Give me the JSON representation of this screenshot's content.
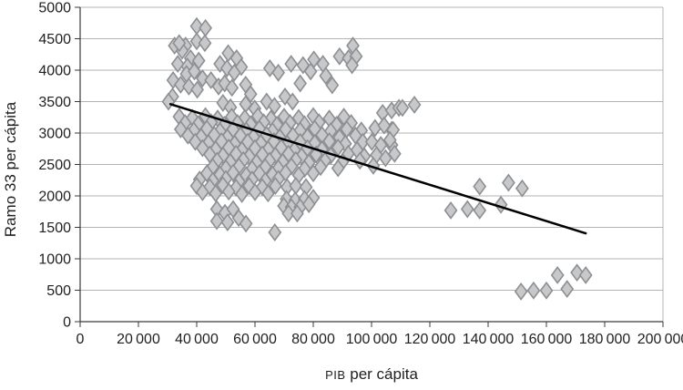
{
  "chart_data": {
    "type": "scatter",
    "title": "",
    "xlabel": "PIB per cápita",
    "xlabel_acronym": "PIB",
    "xlabel_rest": " per cápita",
    "ylabel": "Ramo 33 per cápita",
    "xlim": [
      0,
      200000
    ],
    "ylim": [
      0,
      5000
    ],
    "grid": "horizontal",
    "legend": "none",
    "x_ticks": {
      "values": [
        0,
        20000,
        40000,
        60000,
        80000,
        100000,
        120000,
        140000,
        160000,
        180000,
        200000
      ],
      "labels": [
        "0",
        "20 000",
        "40 000",
        "60 000",
        "80 000",
        "100 000",
        "120 000",
        "140 000",
        "160 000",
        "180 000",
        "200 000"
      ]
    },
    "y_ticks": {
      "values": [
        0,
        500,
        1000,
        1500,
        2000,
        2500,
        3000,
        3500,
        4000,
        4500,
        5000
      ],
      "labels": [
        "0",
        "500",
        "1000",
        "1500",
        "2000",
        "2500",
        "3000",
        "3500",
        "4000",
        "4500",
        "5000"
      ]
    },
    "marker": {
      "shape": "diamond",
      "fill": "#c7c8ca",
      "stroke": "#8d8f92"
    },
    "colors": {
      "gridline": "#b3b3b3",
      "axis": "#3a3a3a",
      "trendline": "#000000",
      "text": "#1f1f1f",
      "background": "#ffffff"
    },
    "trendline": {
      "x1": 31000,
      "y1": 3460,
      "x2": 173500,
      "y2": 1405
    },
    "points": [
      [
        40000,
        4700
      ],
      [
        43000,
        4670
      ],
      [
        36200,
        4390
      ],
      [
        40000,
        4460
      ],
      [
        42800,
        4430
      ],
      [
        35000,
        4310
      ],
      [
        37900,
        4190
      ],
      [
        40700,
        4150
      ],
      [
        32400,
        4390
      ],
      [
        34000,
        4430
      ],
      [
        33500,
        4100
      ],
      [
        36800,
        4060
      ],
      [
        36500,
        3940
      ],
      [
        39200,
        3980
      ],
      [
        42000,
        3870
      ],
      [
        44900,
        3840
      ],
      [
        31900,
        3840
      ],
      [
        34500,
        3770
      ],
      [
        37300,
        3740
      ],
      [
        40200,
        3690
      ],
      [
        31700,
        3580
      ],
      [
        30300,
        3500
      ],
      [
        50800,
        4270
      ],
      [
        53700,
        4190
      ],
      [
        55300,
        4050
      ],
      [
        48000,
        4100
      ],
      [
        50400,
        4030
      ],
      [
        52900,
        3960
      ],
      [
        65100,
        4030
      ],
      [
        68000,
        3960
      ],
      [
        72400,
        4100
      ],
      [
        47500,
        3740
      ],
      [
        49600,
        3790
      ],
      [
        52100,
        3720
      ],
      [
        56800,
        3770
      ],
      [
        58500,
        3620
      ],
      [
        59900,
        3390
      ],
      [
        64000,
        3500
      ],
      [
        66700,
        3430
      ],
      [
        70300,
        3580
      ],
      [
        72900,
        3500
      ],
      [
        56800,
        3460
      ],
      [
        49000,
        3480
      ],
      [
        51600,
        3410
      ],
      [
        76500,
        4080
      ],
      [
        80200,
        4170
      ],
      [
        83300,
        4100
      ],
      [
        79100,
        3980
      ],
      [
        84300,
        3910
      ],
      [
        75500,
        3790
      ],
      [
        89000,
        4220
      ],
      [
        92100,
        4190
      ],
      [
        93600,
        4390
      ],
      [
        94700,
        4220
      ],
      [
        93300,
        4080
      ],
      [
        86500,
        3760
      ],
      [
        103800,
        3320
      ],
      [
        106900,
        3360
      ],
      [
        109400,
        3400
      ],
      [
        110600,
        3400
      ],
      [
        114700,
        3450
      ],
      [
        106900,
        3050
      ],
      [
        106900,
        2810
      ],
      [
        34000,
        3260
      ],
      [
        38500,
        3240
      ],
      [
        43000,
        3270
      ],
      [
        47200,
        3230
      ],
      [
        52000,
        3260
      ],
      [
        56500,
        3240
      ],
      [
        61000,
        3270
      ],
      [
        65500,
        3230
      ],
      [
        70000,
        3260
      ],
      [
        75000,
        3240
      ],
      [
        80000,
        3270
      ],
      [
        85500,
        3230
      ],
      [
        90500,
        3260
      ],
      [
        36000,
        3160
      ],
      [
        40500,
        3140
      ],
      [
        45000,
        3170
      ],
      [
        49500,
        3130
      ],
      [
        54000,
        3160
      ],
      [
        58500,
        3140
      ],
      [
        63000,
        3170
      ],
      [
        67500,
        3130
      ],
      [
        72000,
        3160
      ],
      [
        77000,
        3140
      ],
      [
        82000,
        3170
      ],
      [
        88000,
        3130
      ],
      [
        93000,
        3160
      ],
      [
        34500,
        3060
      ],
      [
        39000,
        3040
      ],
      [
        43500,
        3070
      ],
      [
        48000,
        3030
      ],
      [
        52500,
        3060
      ],
      [
        57000,
        3040
      ],
      [
        61500,
        3070
      ],
      [
        66000,
        3030
      ],
      [
        70500,
        3060
      ],
      [
        75500,
        3040
      ],
      [
        80500,
        3070
      ],
      [
        86000,
        3030
      ],
      [
        91500,
        3060
      ],
      [
        96500,
        3040
      ],
      [
        37000,
        2960
      ],
      [
        41500,
        2940
      ],
      [
        46000,
        2970
      ],
      [
        50500,
        2930
      ],
      [
        55000,
        2960
      ],
      [
        59500,
        2940
      ],
      [
        64000,
        2970
      ],
      [
        68500,
        2930
      ],
      [
        73000,
        2960
      ],
      [
        78000,
        2940
      ],
      [
        83000,
        2970
      ],
      [
        89000,
        2930
      ],
      [
        94500,
        2960
      ],
      [
        39500,
        2860
      ],
      [
        44000,
        2840
      ],
      [
        48500,
        2870
      ],
      [
        53000,
        2830
      ],
      [
        57500,
        2860
      ],
      [
        62000,
        2840
      ],
      [
        66500,
        2870
      ],
      [
        71000,
        2830
      ],
      [
        75500,
        2860
      ],
      [
        80500,
        2840
      ],
      [
        85500,
        2870
      ],
      [
        91000,
        2830
      ],
      [
        97000,
        2860
      ],
      [
        42000,
        2760
      ],
      [
        46500,
        2740
      ],
      [
        51000,
        2770
      ],
      [
        55500,
        2730
      ],
      [
        60000,
        2760
      ],
      [
        64500,
        2740
      ],
      [
        69000,
        2770
      ],
      [
        73500,
        2730
      ],
      [
        78000,
        2760
      ],
      [
        83000,
        2740
      ],
      [
        88500,
        2770
      ],
      [
        95000,
        2730
      ],
      [
        44500,
        2660
      ],
      [
        49000,
        2640
      ],
      [
        53500,
        2670
      ],
      [
        58000,
        2630
      ],
      [
        62500,
        2660
      ],
      [
        67000,
        2640
      ],
      [
        71500,
        2670
      ],
      [
        76000,
        2630
      ],
      [
        81000,
        2660
      ],
      [
        86000,
        2640
      ],
      [
        92000,
        2670
      ],
      [
        97500,
        2630
      ],
      [
        47000,
        2560
      ],
      [
        51500,
        2540
      ],
      [
        56000,
        2570
      ],
      [
        60500,
        2530
      ],
      [
        65000,
        2560
      ],
      [
        69500,
        2540
      ],
      [
        74000,
        2570
      ],
      [
        78500,
        2530
      ],
      [
        84000,
        2560
      ],
      [
        90000,
        2540
      ],
      [
        96000,
        2560
      ],
      [
        45500,
        2460
      ],
      [
        50000,
        2440
      ],
      [
        54500,
        2470
      ],
      [
        59000,
        2430
      ],
      [
        63500,
        2460
      ],
      [
        68000,
        2440
      ],
      [
        72500,
        2470
      ],
      [
        77000,
        2430
      ],
      [
        82500,
        2460
      ],
      [
        88500,
        2440
      ],
      [
        43500,
        2360
      ],
      [
        48000,
        2340
      ],
      [
        52500,
        2370
      ],
      [
        57000,
        2330
      ],
      [
        61500,
        2360
      ],
      [
        66000,
        2340
      ],
      [
        70500,
        2370
      ],
      [
        75000,
        2330
      ],
      [
        80000,
        2360
      ],
      [
        41000,
        2260
      ],
      [
        45500,
        2240
      ],
      [
        50000,
        2270
      ],
      [
        54500,
        2230
      ],
      [
        59000,
        2260
      ],
      [
        63500,
        2240
      ],
      [
        68000,
        2270
      ],
      [
        40000,
        2160
      ],
      [
        44500,
        2140
      ],
      [
        49000,
        2170
      ],
      [
        53500,
        2130
      ],
      [
        58000,
        2160
      ],
      [
        62500,
        2140
      ],
      [
        67000,
        2160
      ],
      [
        71000,
        2140
      ],
      [
        74000,
        2160
      ],
      [
        77500,
        2140
      ],
      [
        70800,
        1950
      ],
      [
        73800,
        1930
      ],
      [
        77000,
        1950
      ],
      [
        80000,
        1970
      ],
      [
        69900,
        1840
      ],
      [
        72500,
        1820
      ],
      [
        75500,
        1820
      ],
      [
        78500,
        1870
      ],
      [
        71500,
        1720
      ],
      [
        74500,
        1720
      ],
      [
        42000,
        2060
      ],
      [
        46500,
        2040
      ],
      [
        51000,
        2070
      ],
      [
        55500,
        2030
      ],
      [
        60000,
        2060
      ],
      [
        64500,
        2040
      ],
      [
        46900,
        1790
      ],
      [
        49700,
        1730
      ],
      [
        52500,
        1790
      ],
      [
        46900,
        1600
      ],
      [
        50600,
        1580
      ],
      [
        54400,
        1650
      ],
      [
        56900,
        1560
      ],
      [
        101200,
        3080
      ],
      [
        104300,
        3120
      ],
      [
        107400,
        3050
      ],
      [
        100100,
        2860
      ],
      [
        103200,
        2810
      ],
      [
        106300,
        2890
      ],
      [
        101700,
        2650
      ],
      [
        104800,
        2600
      ],
      [
        107900,
        2670
      ],
      [
        100600,
        2480
      ],
      [
        66800,
        1420
      ],
      [
        127200,
        1770
      ],
      [
        132900,
        1790
      ],
      [
        137100,
        1770
      ],
      [
        144400,
        1860
      ],
      [
        137100,
        2150
      ],
      [
        147000,
        2210
      ],
      [
        151700,
        2120
      ],
      [
        151300,
        480
      ],
      [
        155600,
        495
      ],
      [
        160000,
        495
      ],
      [
        163800,
        740
      ],
      [
        167100,
        520
      ],
      [
        170500,
        780
      ],
      [
        173500,
        740
      ]
    ]
  }
}
